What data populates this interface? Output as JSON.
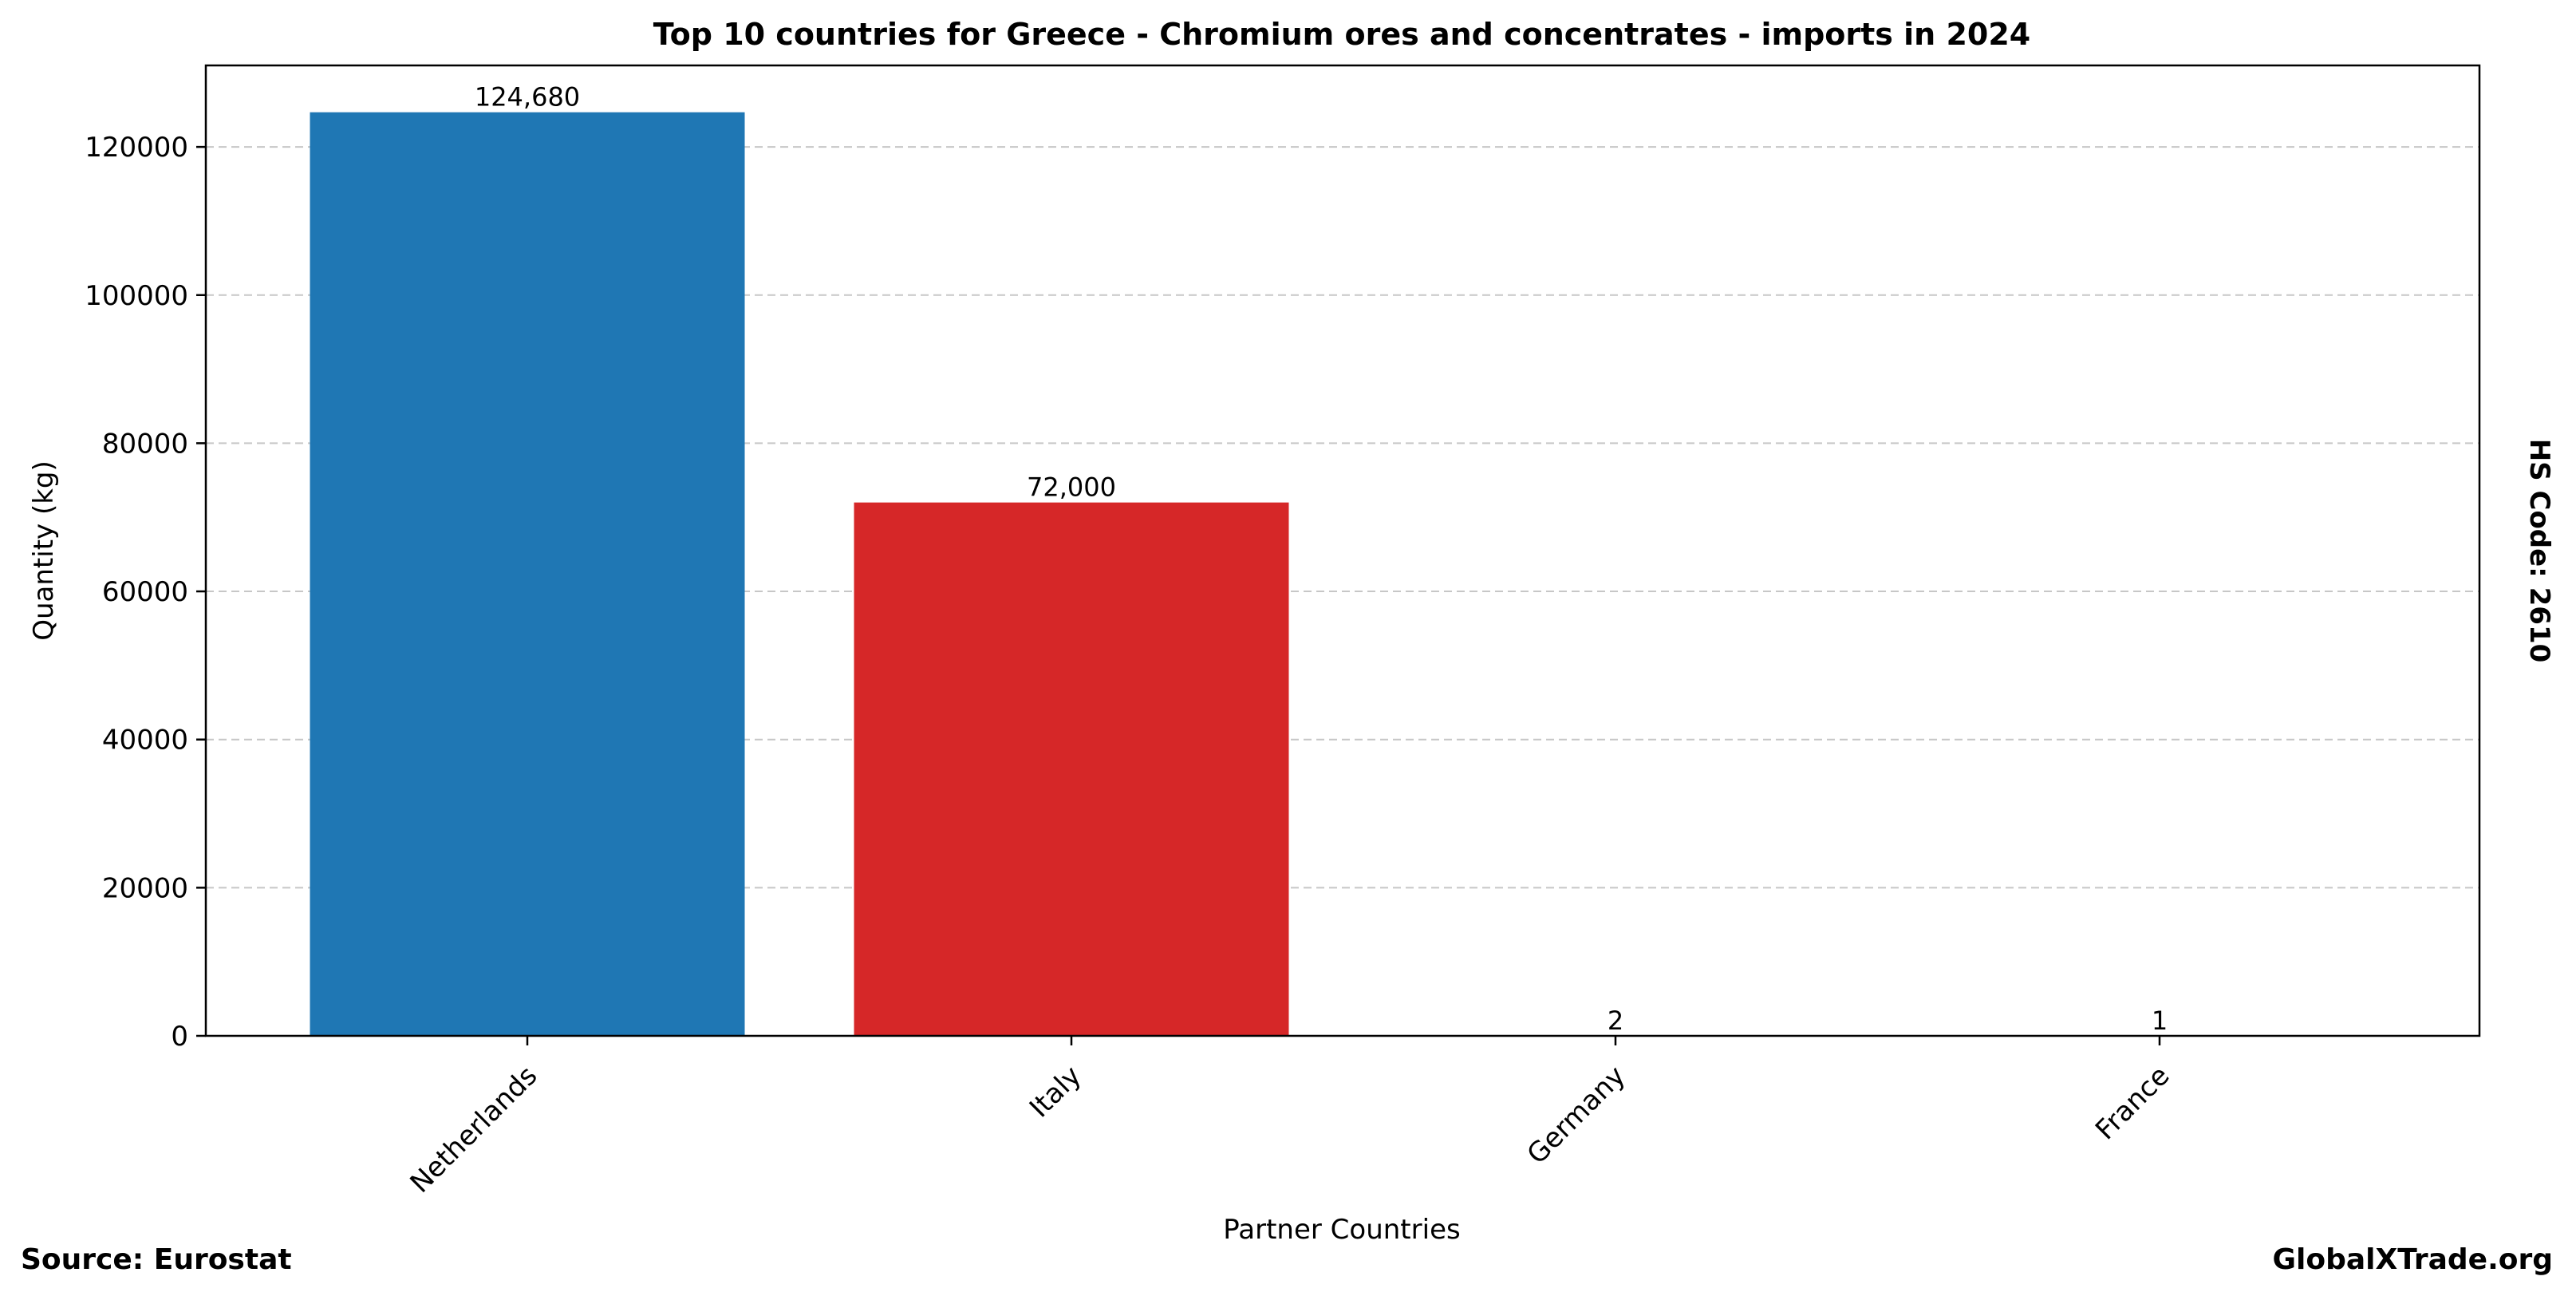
{
  "chart_data": {
    "type": "bar",
    "title": "Top 10 countries for Greece - Chromium ores and concentrates - imports in 2024",
    "xlabel": "Partner Countries",
    "ylabel": "Quantity (kg)",
    "side_label": "HS Code: 2610",
    "categories": [
      "Netherlands",
      "Italy",
      "Germany",
      "France"
    ],
    "values": [
      124680,
      72000,
      2,
      1
    ],
    "value_labels": [
      "124,680",
      "72,000",
      "2",
      "1"
    ],
    "bar_colors": [
      "#1f77b4",
      "#d62728",
      "#2ca02c",
      "#ff7f0e"
    ],
    "ylim": [
      0,
      131000
    ],
    "yticks": [
      0,
      20000,
      40000,
      60000,
      80000,
      100000,
      120000
    ],
    "ytick_labels": [
      "0",
      "20000",
      "40000",
      "60000",
      "80000",
      "100000",
      "120000"
    ],
    "grid": "y-dashed",
    "legend": "none"
  },
  "footer": {
    "source": "Source: Eurostat",
    "brand": "GlobalXTrade.org"
  }
}
